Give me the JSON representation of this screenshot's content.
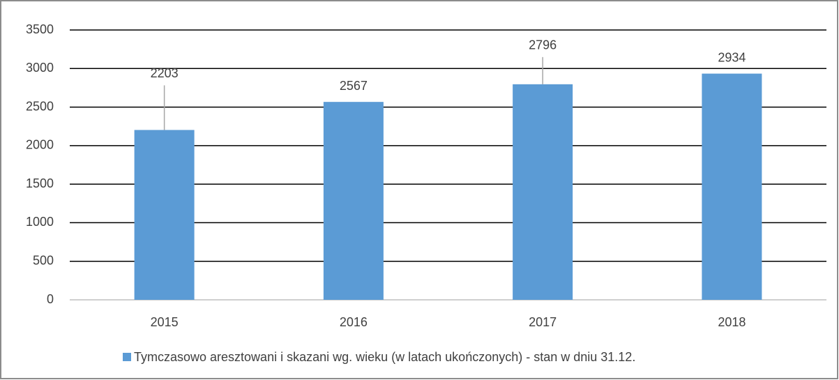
{
  "chart_data": {
    "type": "bar",
    "categories": [
      "2015",
      "2016",
      "2017",
      "2018"
    ],
    "series": [
      {
        "name": "Tymczasowo aresztowani i skazani wg. wieku (w latach ukończonych) - stan w dniu 31.12.",
        "color": "#5b9bd5",
        "values": [
          2203,
          2567,
          2796,
          2934
        ]
      }
    ],
    "ylim": [
      0,
      3500
    ],
    "yticks": [
      0,
      500,
      1000,
      1500,
      2000,
      2500,
      3000,
      3500
    ],
    "grid": true,
    "legend": "bottom"
  }
}
